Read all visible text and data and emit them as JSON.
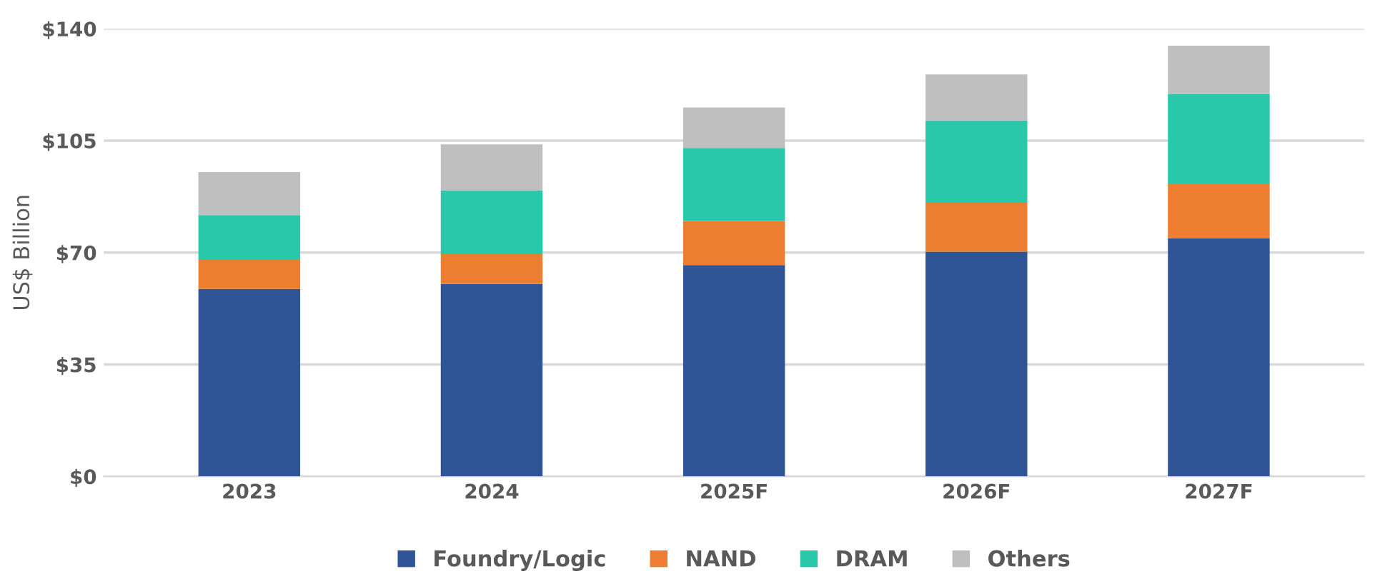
{
  "chart_data": {
    "type": "bar",
    "stacked": true,
    "ylabel": "US$ Billion",
    "categories": [
      "2023",
      "2024",
      "2025F",
      "2026F",
      "2027F"
    ],
    "series": [
      {
        "name": "Foundry/Logic",
        "color": "#2f5597",
        "values": [
          58.6,
          60.2,
          66.1,
          70.3,
          74.5
        ]
      },
      {
        "name": "NAND",
        "color": "#ed7d31",
        "values": [
          9.1,
          9.3,
          13.8,
          15.3,
          17.1
        ]
      },
      {
        "name": "DRAM",
        "color": "#2ac8ab",
        "values": [
          14.0,
          20.0,
          22.8,
          25.7,
          28.0
        ]
      },
      {
        "name": "Others",
        "color": "#bfbfbf",
        "values": [
          13.5,
          14.3,
          12.7,
          14.4,
          15.1
        ]
      }
    ],
    "ylim": [
      0,
      140
    ],
    "yticks": [
      {
        "value": 0,
        "label": "$0"
      },
      {
        "value": 35,
        "label": "$35"
      },
      {
        "value": 70,
        "label": "$70"
      },
      {
        "value": 105,
        "label": "$105"
      },
      {
        "value": 140,
        "label": "$140"
      }
    ],
    "grid": "y",
    "legend": "bottom"
  }
}
